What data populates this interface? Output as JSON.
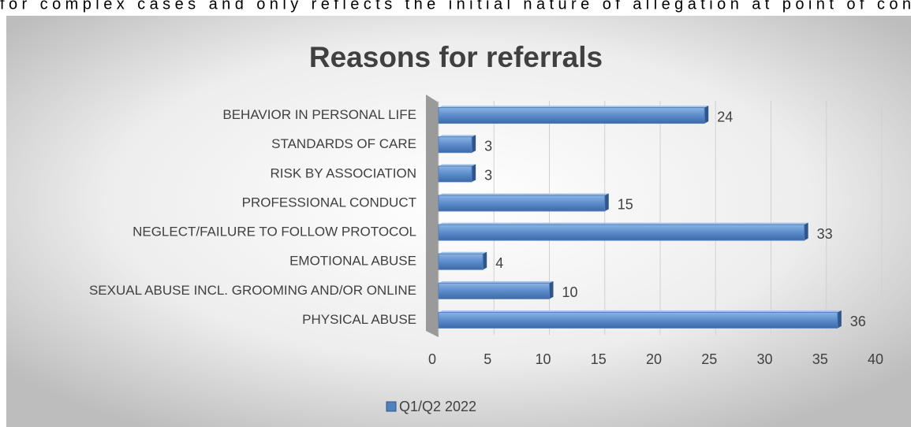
{
  "document_text": "for complex cases and only reflects the initial nature of allegation at point of con",
  "chart_data": {
    "type": "bar",
    "orientation": "horizontal",
    "title": "Reasons for referrals",
    "categories": [
      "BEHAVIOR IN PERSONAL LIFE",
      "STANDARDS OF CARE",
      "RISK BY ASSOCIATION",
      "PROFESSIONAL CONDUCT",
      "NEGLECT/FAILURE TO FOLLOW PROTOCOL",
      "EMOTIONAL ABUSE",
      "SEXUAL ABUSE INCL. GROOMING AND/OR ONLINE",
      "PHYSICAL ABUSE"
    ],
    "series": [
      {
        "name": "Q1/Q2 2022",
        "color": "#4f81bd",
        "values": [
          24,
          3,
          3,
          15,
          33,
          4,
          10,
          36
        ]
      }
    ],
    "xlim": [
      0,
      40
    ],
    "xticks": [
      0,
      5,
      10,
      15,
      20,
      25,
      30,
      35,
      40
    ],
    "grid": true,
    "legend": "bottom"
  }
}
